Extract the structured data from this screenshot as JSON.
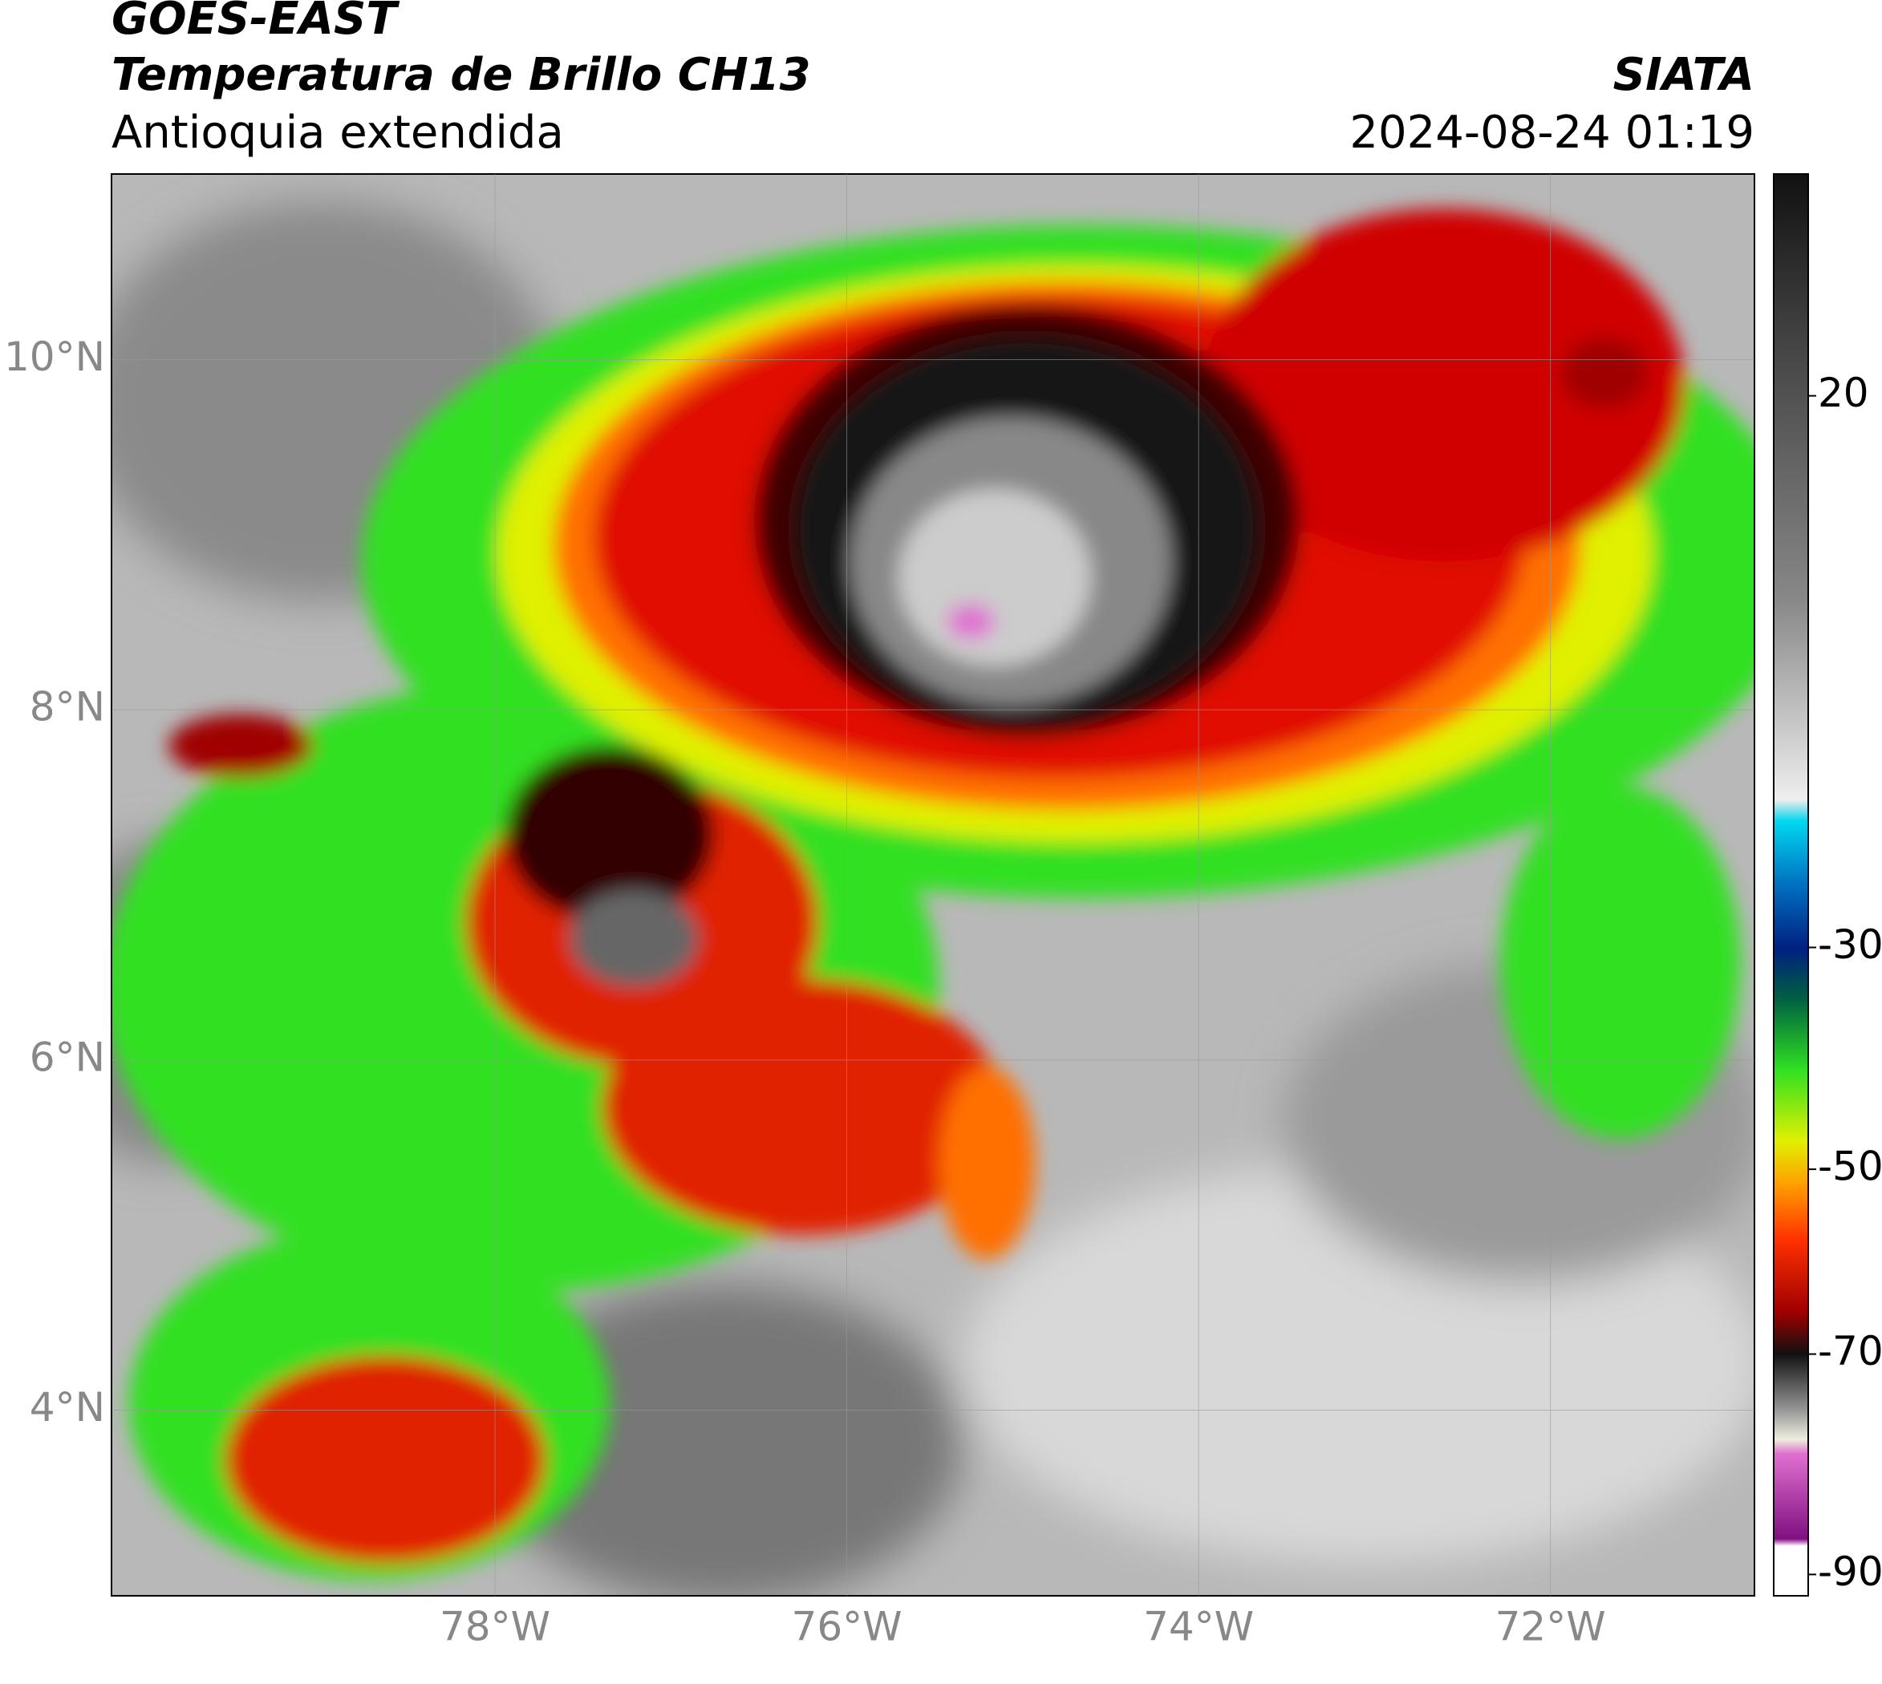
{
  "header": {
    "title": "GOES-EAST",
    "subtitle": "Temperatura de Brillo CH13",
    "region": "Antioquia extendida",
    "source": "SIATA",
    "datetime": "2024-08-24 01:19"
  },
  "map": {
    "xlim": [
      -80.18,
      -70.84
    ],
    "ylim": [
      2.94,
      11.06
    ],
    "xticks": [
      {
        "value": -78,
        "label": "78°W"
      },
      {
        "value": -76,
        "label": "76°W"
      },
      {
        "value": -74,
        "label": "74°W"
      },
      {
        "value": -72,
        "label": "72°W"
      }
    ],
    "yticks": [
      {
        "value": 10,
        "label": "10°N"
      },
      {
        "value": 8,
        "label": "8°N"
      },
      {
        "value": 6,
        "label": "6°N"
      },
      {
        "value": 4,
        "label": "4°N"
      }
    ],
    "grid": true
  },
  "colorbar": {
    "ticks": [
      20,
      -30,
      -50,
      -70,
      -90
    ]
  }
}
